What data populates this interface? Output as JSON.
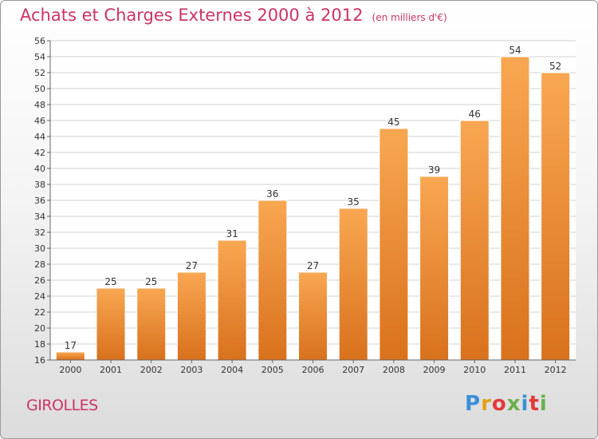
{
  "header": {
    "title": "Achats et Charges Externes 2000 à 2012",
    "unit": "(en milliers d'€)"
  },
  "footer": {
    "commune": "GIROLLES",
    "brand": "Proxiti"
  },
  "colors": {
    "title": "#cc3366",
    "bar_light": "#f9a752",
    "bar_dark": "#d9711c",
    "grid": "#d0d0d0"
  },
  "chart_data": {
    "type": "bar",
    "categories": [
      "2000",
      "2001",
      "2002",
      "2003",
      "2004",
      "2005",
      "2006",
      "2007",
      "2008",
      "2009",
      "2010",
      "2011",
      "2012"
    ],
    "values": [
      17,
      25,
      25,
      27,
      31,
      36,
      27,
      35,
      45,
      39,
      46,
      54,
      52
    ],
    "ylim": [
      16,
      56
    ],
    "yticks": [
      16,
      18,
      20,
      22,
      24,
      26,
      28,
      30,
      32,
      34,
      36,
      38,
      40,
      42,
      44,
      46,
      48,
      50,
      52,
      54,
      56
    ],
    "grid": true,
    "data_labels": true
  }
}
